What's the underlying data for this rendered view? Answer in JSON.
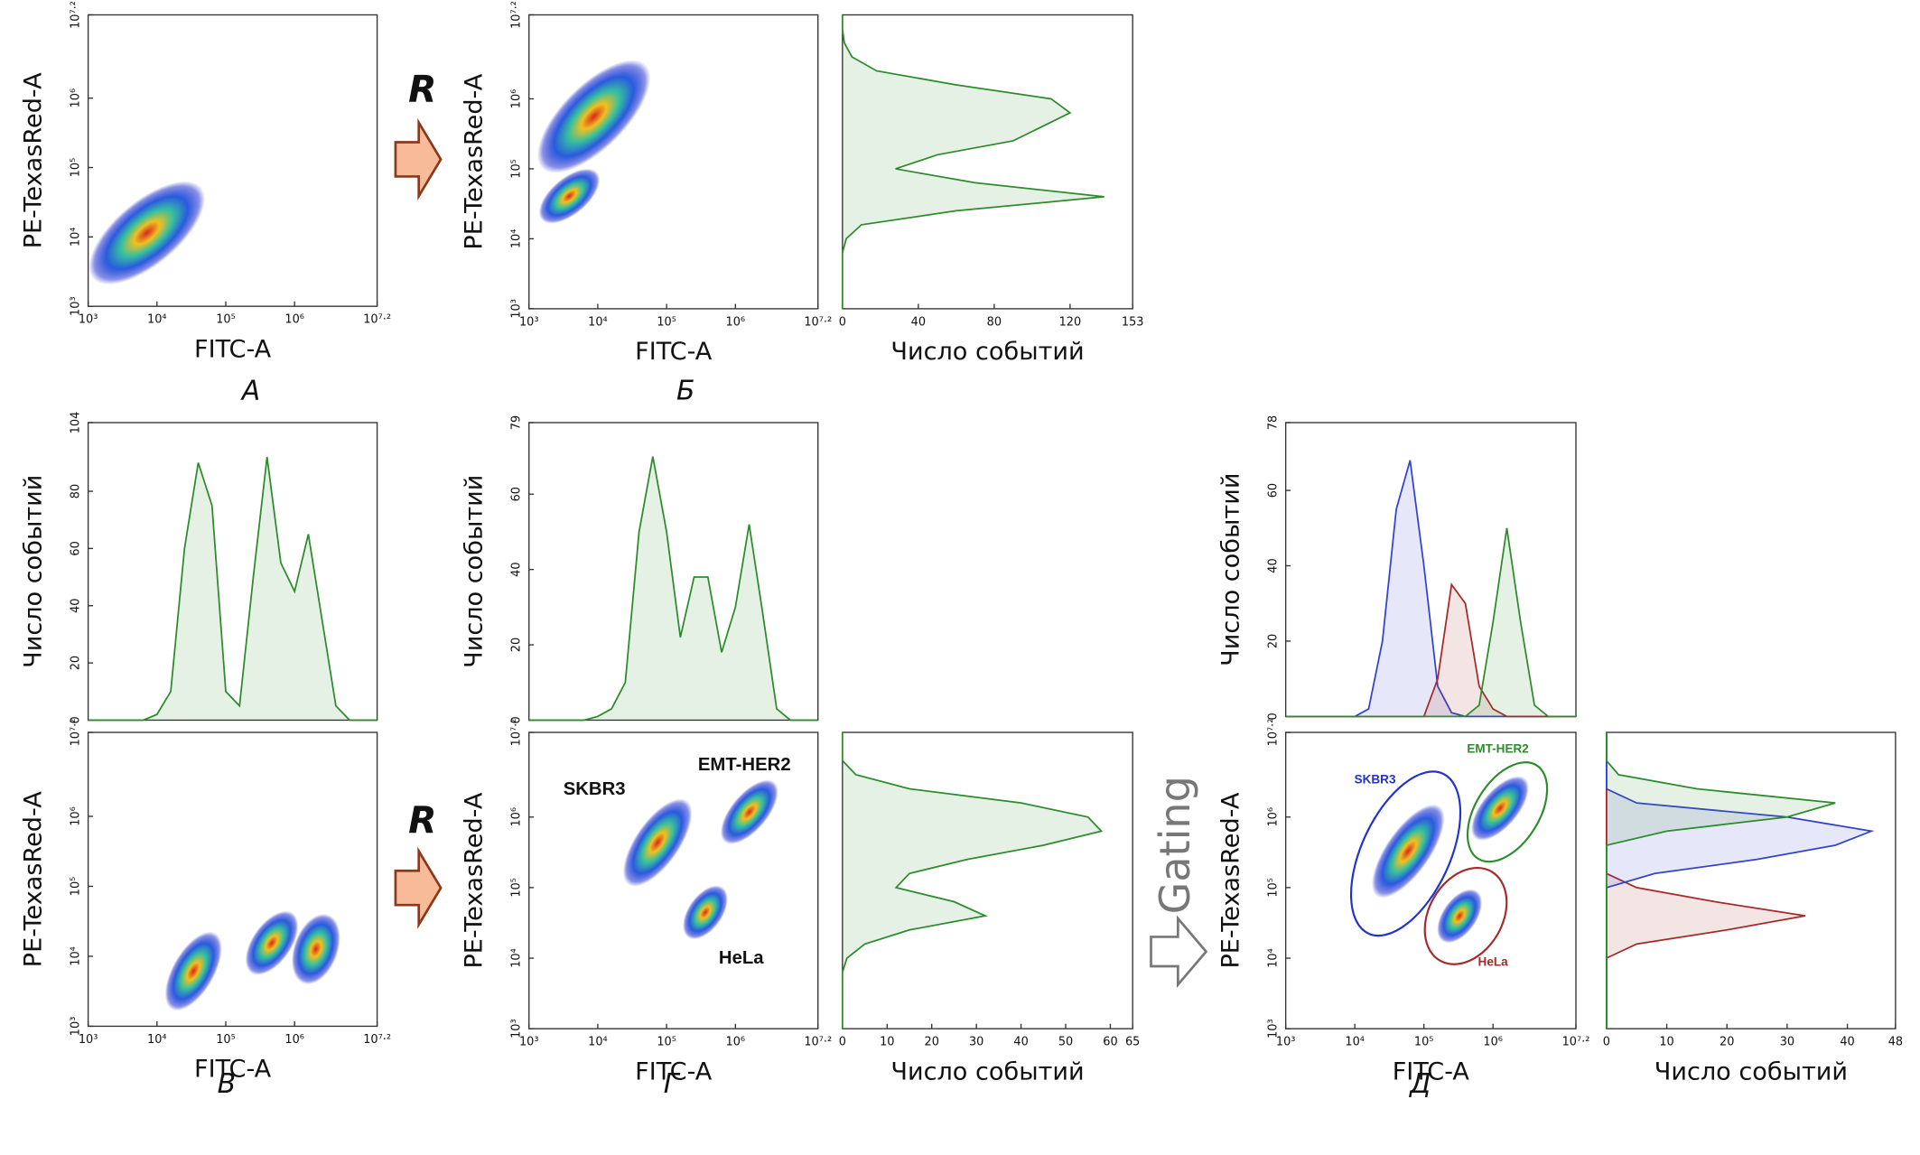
{
  "figure": {
    "panel_labels": [
      "А",
      "Б",
      "В",
      "Г",
      "Д"
    ],
    "arrow_labels": [
      "R",
      "R",
      "Gating"
    ]
  },
  "chart_data": [
    {
      "type": "density",
      "xlabel": "FITC-A",
      "ylabel": "PE-TexasRed-A",
      "log_x": true,
      "log_y": true,
      "xlim": [
        1000,
        15848932
      ],
      "ylim": [
        1000,
        15848932
      ],
      "xticks": [
        {
          "value": 1000,
          "label": "10³"
        },
        {
          "value": 10000,
          "label": "10⁴"
        },
        {
          "value": 100000,
          "label": "10⁵"
        },
        {
          "value": 1000000,
          "label": "10⁶"
        },
        {
          "value": 15848932,
          "label": "10⁷·²"
        }
      ],
      "yticks": [
        {
          "value": 1000,
          "label": "10³"
        },
        {
          "value": 10000,
          "label": "10⁴"
        },
        {
          "value": 100000,
          "label": "10⁵"
        },
        {
          "value": 1000000,
          "label": "10⁶"
        },
        {
          "value": 15848932,
          "label": "10⁷·²"
        }
      ]
    },
    {
      "type": "density",
      "xlabel": "FITC-A",
      "ylabel": "PE-TexasRed-A",
      "log_x": true,
      "log_y": true,
      "xlim": [
        1000,
        15848932
      ],
      "ylim": [
        1000,
        15848932
      ],
      "xticks": [
        {
          "value": 1000,
          "label": "10³"
        },
        {
          "value": 10000,
          "label": "10⁴"
        },
        {
          "value": 100000,
          "label": "10⁵"
        },
        {
          "value": 1000000,
          "label": "10⁶"
        },
        {
          "value": 15848932,
          "label": "10⁷·²"
        }
      ],
      "yticks": [
        {
          "value": 1000,
          "label": "10³"
        },
        {
          "value": 10000,
          "label": "10⁴"
        },
        {
          "value": 100000,
          "label": "10⁵"
        },
        {
          "value": 1000000,
          "label": "10⁶"
        },
        {
          "value": 15848932,
          "label": "10⁷·²"
        }
      ]
    },
    {
      "type": "histogram",
      "orientation": "horizontal",
      "xlabel": "Число событий",
      "log_y": true,
      "xlim": [
        0,
        153
      ],
      "xticks": [
        0,
        40,
        80,
        120,
        153
      ],
      "ylim": [
        1000,
        15848932
      ],
      "y": [
        1000,
        1585,
        2512,
        3981,
        6310,
        10000,
        15849,
        25119,
        39811,
        63096,
        100000,
        158489,
        251189,
        398107,
        630957,
        1000000,
        1584893,
        2511886,
        3981072,
        6309573,
        10000000,
        15848932
      ],
      "series": [
        {
          "color": "#2e8b2e",
          "values": [
            0,
            0,
            0,
            0,
            0,
            2,
            10,
            60,
            138,
            70,
            28,
            50,
            90,
            105,
            120,
            110,
            60,
            18,
            5,
            1,
            0,
            0
          ]
        }
      ]
    },
    {
      "type": "histogram",
      "orientation": "vertical",
      "ylabel": "Число событий",
      "log_x": true,
      "xlim": [
        1000,
        15848932
      ],
      "ylim": [
        0,
        104
      ],
      "yticks": [
        0,
        20,
        40,
        60,
        80,
        104
      ],
      "x": [
        1000,
        1585,
        2512,
        3981,
        6310,
        10000,
        15849,
        25119,
        39811,
        63096,
        100000,
        158489,
        251189,
        398107,
        630957,
        1000000,
        1584893,
        2511886,
        3981072,
        6309573,
        10000000,
        15848932
      ],
      "series": [
        {
          "color": "#2e8b2e",
          "values": [
            0,
            0,
            0,
            0,
            0,
            2,
            10,
            60,
            90,
            75,
            10,
            5,
            50,
            92,
            55,
            45,
            65,
            35,
            5,
            0,
            0,
            0
          ]
        }
      ]
    },
    {
      "type": "density",
      "xlabel": "FITC-A",
      "ylabel": "PE-TexasRed-A",
      "log_x": true,
      "log_y": true,
      "xlim": [
        1000,
        15848932
      ],
      "ylim": [
        1000,
        15848932
      ],
      "xticks": [
        {
          "value": 1000,
          "label": "10³"
        },
        {
          "value": 10000,
          "label": "10⁴"
        },
        {
          "value": 100000,
          "label": "10⁵"
        },
        {
          "value": 1000000,
          "label": "10⁶"
        },
        {
          "value": 15848932,
          "label": "10⁷·²"
        }
      ],
      "yticks": [
        {
          "value": 1000,
          "label": "10³"
        },
        {
          "value": 10000,
          "label": "10⁴"
        },
        {
          "value": 100000,
          "label": "10⁵"
        },
        {
          "value": 1000000,
          "label": "10⁶"
        },
        {
          "value": 15848932,
          "label": "10⁷·²"
        }
      ]
    },
    {
      "type": "histogram",
      "orientation": "vertical",
      "ylabel": "Число событий",
      "log_x": true,
      "xlim": [
        1000,
        15848932
      ],
      "ylim": [
        0,
        79
      ],
      "yticks": [
        0,
        20,
        40,
        60,
        79
      ],
      "x": [
        1000,
        1585,
        2512,
        3981,
        6310,
        10000,
        15849,
        25119,
        39811,
        63096,
        100000,
        158489,
        251189,
        398107,
        630957,
        1000000,
        1584893,
        2511886,
        3981072,
        6309573,
        10000000,
        15848932
      ],
      "series": [
        {
          "color": "#2e8b2e",
          "values": [
            0,
            0,
            0,
            0,
            0,
            1,
            3,
            10,
            50,
            70,
            50,
            22,
            38,
            38,
            18,
            30,
            52,
            28,
            3,
            0,
            0,
            0
          ]
        }
      ]
    },
    {
      "type": "density",
      "xlabel": "FITC-A",
      "ylabel": "PE-TexasRed-A",
      "log_x": true,
      "log_y": true,
      "xlim": [
        1000,
        15848932
      ],
      "ylim": [
        1000,
        15848932
      ],
      "xticks": [
        {
          "value": 1000,
          "label": "10³"
        },
        {
          "value": 10000,
          "label": "10⁴"
        },
        {
          "value": 100000,
          "label": "10⁵"
        },
        {
          "value": 1000000,
          "label": "10⁶"
        },
        {
          "value": 15848932,
          "label": "10⁷·²"
        }
      ],
      "yticks": [
        {
          "value": 1000,
          "label": "10³"
        },
        {
          "value": 10000,
          "label": "10⁴"
        },
        {
          "value": 100000,
          "label": "10⁵"
        },
        {
          "value": 1000000,
          "label": "10⁶"
        },
        {
          "value": 15848932,
          "label": "10⁷·²"
        }
      ],
      "annotations": [
        {
          "text": "SKBR3",
          "color": "#111111"
        },
        {
          "text": "EMT-HER2",
          "color": "#111111"
        },
        {
          "text": "HeLa",
          "color": "#111111"
        }
      ]
    },
    {
      "type": "histogram",
      "orientation": "horizontal",
      "xlabel": "Число событий",
      "log_y": true,
      "xlim": [
        0,
        65
      ],
      "xticks": [
        0,
        10,
        20,
        30,
        40,
        50,
        60,
        65
      ],
      "ylim": [
        1000,
        15848932
      ],
      "y": [
        1000,
        1585,
        2512,
        3981,
        6310,
        10000,
        15849,
        25119,
        39811,
        63096,
        100000,
        158489,
        251189,
        398107,
        630957,
        1000000,
        1584893,
        2511886,
        3981072,
        6309573,
        10000000,
        15848932
      ],
      "series": [
        {
          "color": "#2e8b2e",
          "values": [
            0,
            0,
            0,
            0,
            0,
            1,
            5,
            15,
            32,
            25,
            12,
            15,
            28,
            45,
            58,
            55,
            40,
            15,
            3,
            0,
            0,
            0
          ]
        }
      ]
    },
    {
      "type": "histogram",
      "orientation": "vertical",
      "ylabel": "Число событий",
      "log_x": true,
      "xlim": [
        1000,
        15848932
      ],
      "ylim": [
        0,
        78
      ],
      "yticks": [
        0,
        20,
        40,
        60,
        78
      ],
      "x": [
        1000,
        1585,
        2512,
        3981,
        6310,
        10000,
        15849,
        25119,
        39811,
        63096,
        100000,
        158489,
        251189,
        398107,
        630957,
        1000000,
        1584893,
        2511886,
        3981072,
        6309573,
        10000000,
        15848932
      ],
      "series": [
        {
          "color": "#3344cc",
          "values": [
            0,
            0,
            0,
            0,
            0,
            0,
            2,
            20,
            55,
            68,
            40,
            8,
            1,
            0,
            0,
            0,
            0,
            0,
            0,
            0,
            0,
            0
          ]
        },
        {
          "color": "#a52a2a",
          "values": [
            0,
            0,
            0,
            0,
            0,
            0,
            0,
            0,
            0,
            0,
            0,
            10,
            35,
            30,
            8,
            2,
            0,
            0,
            0,
            0,
            0,
            0
          ]
        },
        {
          "color": "#2e8b2e",
          "values": [
            0,
            0,
            0,
            0,
            0,
            0,
            0,
            0,
            0,
            0,
            0,
            0,
            0,
            0,
            3,
            25,
            50,
            25,
            3,
            0,
            0,
            0
          ]
        }
      ]
    },
    {
      "type": "density",
      "xlabel": "FITC-A",
      "ylabel": "PE-TexasRed-A",
      "log_x": true,
      "log_y": true,
      "xlim": [
        1000,
        15848932
      ],
      "ylim": [
        1000,
        15848932
      ],
      "xticks": [
        {
          "value": 1000,
          "label": "10³"
        },
        {
          "value": 10000,
          "label": "10⁴"
        },
        {
          "value": 100000,
          "label": "10⁵"
        },
        {
          "value": 1000000,
          "label": "10⁶"
        },
        {
          "value": 15848932,
          "label": "10⁷·²"
        }
      ],
      "yticks": [
        {
          "value": 1000,
          "label": "10³"
        },
        {
          "value": 10000,
          "label": "10⁴"
        },
        {
          "value": 100000,
          "label": "10⁵"
        },
        {
          "value": 1000000,
          "label": "10⁶"
        },
        {
          "value": 15848932,
          "label": "10⁷·²"
        }
      ],
      "annotations": [
        {
          "text": "SKBR3",
          "color": "#2233cc"
        },
        {
          "text": "EMT-HER2",
          "color": "#2e8b2e"
        },
        {
          "text": "HeLa",
          "color": "#a52a2a"
        }
      ]
    },
    {
      "type": "histogram",
      "orientation": "horizontal",
      "xlabel": "Число событий",
      "log_y": true,
      "xlim": [
        0,
        48
      ],
      "xticks": [
        0,
        10,
        20,
        30,
        40,
        48
      ],
      "ylim": [
        1000,
        15848932
      ],
      "y": [
        1000,
        1585,
        2512,
        3981,
        6310,
        10000,
        15849,
        25119,
        39811,
        63096,
        100000,
        158489,
        251189,
        398107,
        630957,
        1000000,
        1584893,
        2511886,
        3981072,
        6309573,
        10000000,
        15848932
      ],
      "series": [
        {
          "color": "#a52a2a",
          "values": [
            0,
            0,
            0,
            0,
            0,
            0,
            5,
            20,
            33,
            18,
            5,
            0,
            0,
            0,
            0,
            0,
            0,
            0,
            0,
            0,
            0,
            0
          ]
        },
        {
          "color": "#3344cc",
          "values": [
            0,
            0,
            0,
            0,
            0,
            0,
            0,
            0,
            0,
            0,
            0,
            8,
            25,
            38,
            44,
            30,
            5,
            0,
            0,
            0,
            0,
            0
          ]
        },
        {
          "color": "#2e8b2e",
          "values": [
            0,
            0,
            0,
            0,
            0,
            0,
            0,
            0,
            0,
            0,
            0,
            0,
            0,
            0,
            10,
            30,
            38,
            15,
            2,
            0,
            0,
            0
          ]
        }
      ]
    }
  ]
}
